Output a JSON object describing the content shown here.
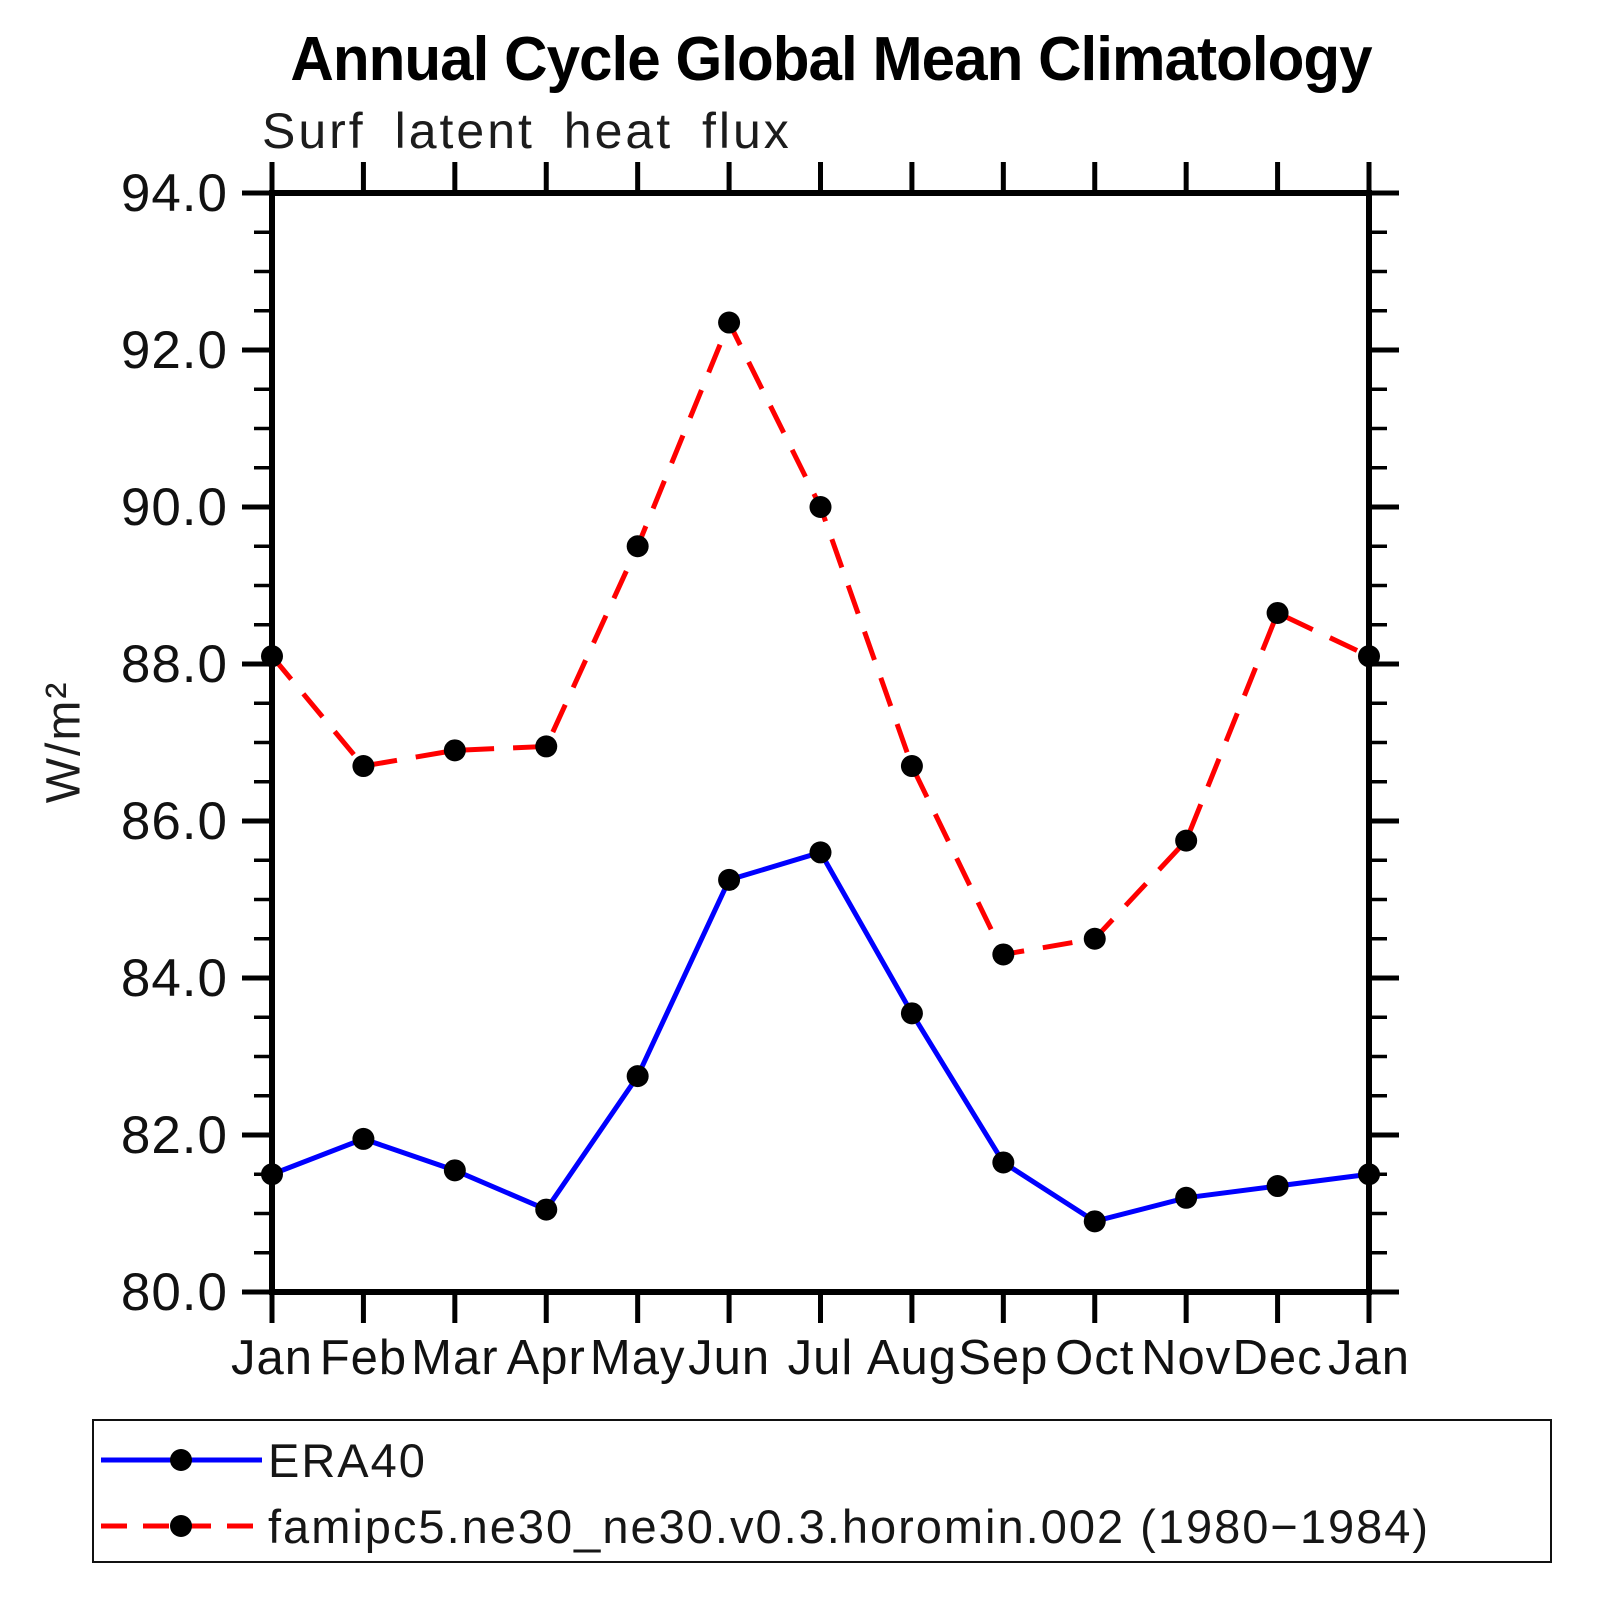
{
  "page": {
    "background": "#ffffff"
  },
  "header": {
    "title": "Annual Cycle Global Mean Climatology",
    "subtitle": "Surf latent heat flux"
  },
  "y_axis": {
    "label": "W/m²"
  },
  "colors": {
    "era40_line": "#0000ff",
    "model_line": "#ff0000",
    "marker": "#000000",
    "axis": "#000000",
    "text": "#1c1c1c"
  },
  "chart_data": {
    "type": "line",
    "title": "Annual Cycle Global Mean Climatology",
    "subtitle": "Surf latent heat flux",
    "xlabel": "",
    "ylabel": "W/m²",
    "ylim": [
      80.0,
      94.0
    ],
    "ytick_major_step": 2.0,
    "ytick_minor_step": 0.5,
    "grid": false,
    "legend_position": "bottom",
    "categories": [
      "Jan",
      "Feb",
      "Mar",
      "Apr",
      "May",
      "Jun",
      "Jul",
      "Aug",
      "Sep",
      "Oct",
      "Nov",
      "Dec",
      "Jan"
    ],
    "series": [
      {
        "name": "ERA40",
        "color": "#0000ff",
        "line_style": "solid",
        "marker": "circle",
        "marker_color": "#000000",
        "values": [
          81.5,
          81.95,
          81.55,
          81.05,
          82.75,
          85.25,
          85.6,
          83.55,
          81.65,
          80.9,
          81.2,
          81.35,
          81.5
        ]
      },
      {
        "name": "famipc5.ne30_ne30.v0.3.horomin.002 (1980−1984)",
        "color": "#ff0000",
        "line_style": "dashed",
        "marker": "circle",
        "marker_color": "#000000",
        "values": [
          88.1,
          86.7,
          86.9,
          86.95,
          89.5,
          92.35,
          90.0,
          86.7,
          84.3,
          84.5,
          85.75,
          88.65,
          88.1
        ]
      }
    ]
  }
}
